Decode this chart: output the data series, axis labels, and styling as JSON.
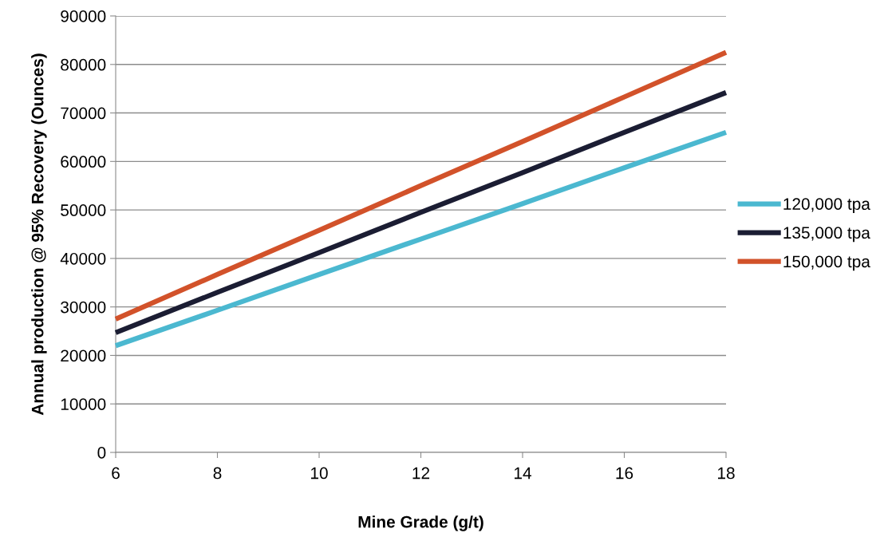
{
  "chart_data": {
    "type": "line",
    "xlabel": "Mine Grade (g/t)",
    "ylabel": "Annual production @ 95% Recovery (Ounces)",
    "x": [
      6,
      8,
      10,
      12,
      14,
      16,
      18
    ],
    "series": [
      {
        "name": "120,000 tpa",
        "color": "#4bb8d0",
        "values": [
          22000,
          29300,
          36700,
          44000,
          51300,
          58700,
          66000
        ]
      },
      {
        "name": "135,000 tpa",
        "color": "#1b1d33",
        "values": [
          24700,
          33000,
          41200,
          49500,
          57700,
          66000,
          74200
        ]
      },
      {
        "name": "150,000 tpa",
        "color": "#d2522a",
        "values": [
          27500,
          36700,
          45800,
          55000,
          64100,
          73300,
          82500
        ]
      }
    ],
    "xlim": [
      6,
      18
    ],
    "xticks": [
      6,
      8,
      10,
      12,
      14,
      16,
      18
    ],
    "ylim": [
      0,
      90000
    ],
    "yticks": [
      0,
      10000,
      20000,
      30000,
      40000,
      50000,
      60000,
      70000,
      80000,
      90000
    ],
    "grid": "y",
    "legend": "right",
    "marker": "none",
    "line_style": "solid"
  }
}
